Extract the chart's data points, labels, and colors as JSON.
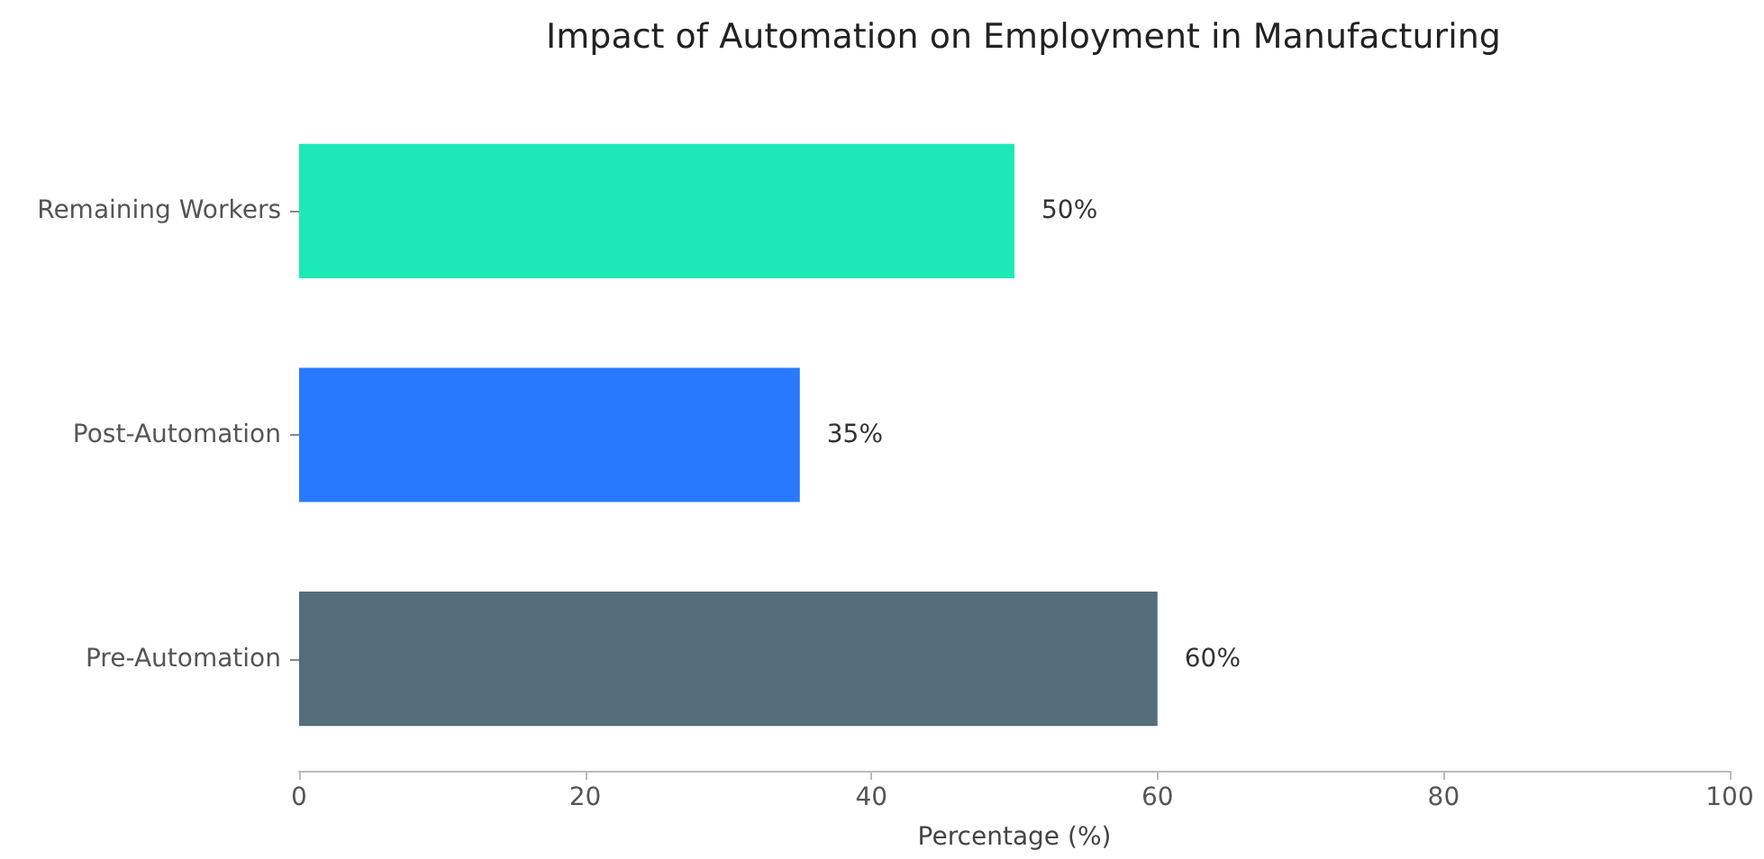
{
  "chart_data": {
    "type": "bar",
    "orientation": "horizontal",
    "title": "Impact of Automation on Employment in Manufacturing",
    "xlabel": "Percentage (%)",
    "categories": [
      "Remaining Workers",
      "Post-Automation",
      "Pre-Automation"
    ],
    "values": [
      50,
      35,
      60
    ],
    "colors": [
      "#1de9b6",
      "#2979ff",
      "#546e7a"
    ],
    "value_labels": [
      "50%",
      "35%",
      "60%"
    ],
    "xlim": [
      0,
      100
    ],
    "xticks": [
      0,
      20,
      40,
      60,
      80,
      100
    ],
    "grid": false
  }
}
